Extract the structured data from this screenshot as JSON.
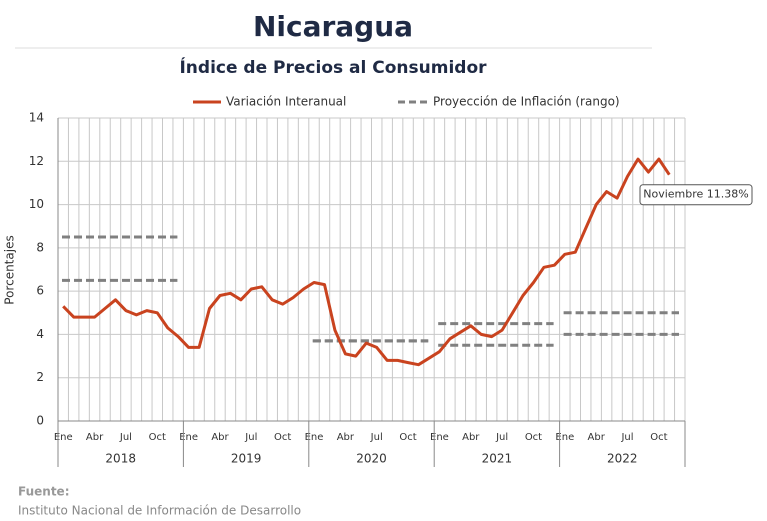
{
  "chart_data": {
    "type": "line",
    "title": "Nicaragua",
    "subtitle": "Índice de Precios al Consumidor",
    "y_label": "Porcentajes",
    "years": [
      "2018",
      "2019",
      "2020",
      "2021",
      "2022"
    ],
    "categories": [
      "Ene",
      null,
      null,
      "Abr",
      null,
      null,
      "Jul",
      null,
      null,
      "Oct",
      null,
      null,
      "Ene",
      null,
      null,
      "Abr",
      null,
      null,
      "Jul",
      null,
      null,
      "Oct",
      null,
      null,
      "Ene",
      null,
      null,
      "Abr",
      null,
      null,
      "Jul",
      null,
      null,
      "Oct",
      null,
      null,
      "Ene",
      null,
      null,
      "Abr",
      null,
      null,
      "Jul",
      null,
      null,
      "Oct",
      null,
      null,
      "Ene",
      null,
      null,
      "Abr",
      null,
      null,
      "Jul",
      null,
      null,
      "Oct",
      null
    ],
    "series": [
      {
        "name": "Variación Interanual",
        "color": "#c9431f",
        "values": [
          5.3,
          4.8,
          4.8,
          4.8,
          5.2,
          5.6,
          5.1,
          4.9,
          5.1,
          5.0,
          4.3,
          3.9,
          3.4,
          3.4,
          5.2,
          5.8,
          5.9,
          5.6,
          6.1,
          6.2,
          5.6,
          5.4,
          5.7,
          6.1,
          6.4,
          6.3,
          4.2,
          3.1,
          3.0,
          3.6,
          3.4,
          2.8,
          2.8,
          2.7,
          2.6,
          2.9,
          3.2,
          3.8,
          4.1,
          4.4,
          4.0,
          3.9,
          4.2,
          5.0,
          5.8,
          6.4,
          7.1,
          7.2,
          7.7,
          7.8,
          8.9,
          10.0,
          10.6,
          10.3,
          11.3,
          12.1,
          11.5,
          12.1,
          11.38
        ]
      }
    ],
    "projection": {
      "name": "Proyección de Inflación (rango)",
      "color": "#808080",
      "low": [
        6.5,
        null,
        3.7,
        3.5,
        4.0
      ],
      "high": [
        8.5,
        null,
        3.7,
        4.5,
        5.0
      ]
    },
    "annotation": "Noviembre 11.38%",
    "ylim": [
      0,
      14
    ],
    "yticks": [
      0,
      2,
      4,
      6,
      8,
      10,
      12,
      14
    ],
    "grid": true,
    "source_label": "Fuente:",
    "source": "Instituto Nacional de Información de  Desarrollo"
  }
}
